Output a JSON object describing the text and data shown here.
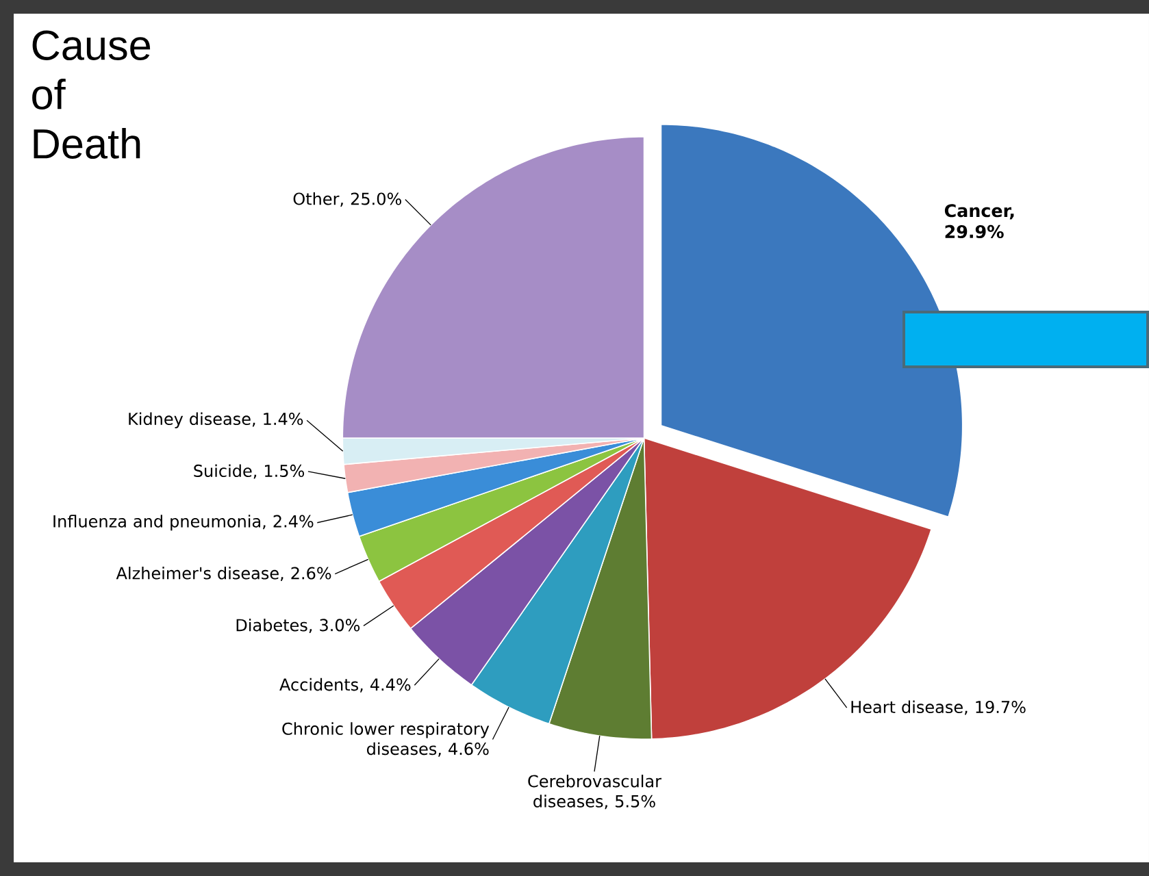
{
  "chart_data": {
    "type": "pie",
    "title": "Cause of Death",
    "categories": [
      "Cancer, 29.9%",
      "Heart disease, 19.7%",
      "Cerebrovascular diseases, 5.5%",
      "Chronic lower respiratory diseases, 4.6%",
      "Accidents, 4.4%",
      "Diabetes, 3.0%",
      "Alzheimer's disease, 2.6%",
      "Influenza and pneumonia, 2.4%",
      "Suicide, 1.5%",
      "Kidney disease, 1.4%",
      "Other, 25.0%"
    ],
    "values": [
      29.9,
      19.7,
      5.5,
      4.6,
      4.4,
      3.0,
      2.6,
      2.4,
      1.5,
      1.4,
      25.0
    ],
    "colors": [
      "#3b78be",
      "#c0403c",
      "#5e7d32",
      "#2e9dbf",
      "#7b52a6",
      "#e05a55",
      "#8cc440",
      "#3a8dd8",
      "#f2b2b2",
      "#d8eef4",
      "#a68dc6"
    ]
  }
}
